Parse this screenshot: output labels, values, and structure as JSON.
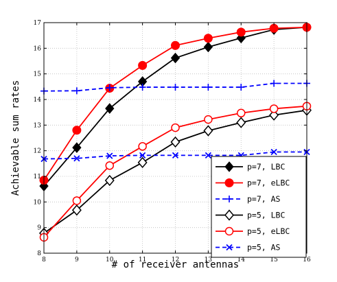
{
  "chart_data": {
    "type": "line",
    "title": "",
    "xlabel": "# of receiver antennas",
    "ylabel": "Achievable sum rates",
    "xlim": [
      8,
      16
    ],
    "ylim": [
      8,
      17
    ],
    "x_ticks": [
      "8",
      "9",
      "10",
      "11",
      "12",
      "13",
      "14",
      "15",
      "16"
    ],
    "y_ticks": [
      "8",
      "9",
      "10",
      "11",
      "12",
      "13",
      "14",
      "15",
      "16",
      "17"
    ],
    "grid": true,
    "legend_position": "bottom-right",
    "x": [
      8,
      9,
      10,
      11,
      12,
      13,
      14,
      15,
      16
    ],
    "series": [
      {
        "name": "p=7, LBC",
        "color": "#000000",
        "line": "solid",
        "marker": "filled-diamond",
        "values": [
          10.62,
          12.12,
          13.65,
          14.7,
          15.62,
          16.05,
          16.4,
          16.73,
          16.82
        ]
      },
      {
        "name": "p=7, eLBC",
        "color": "#ff0000",
        "line": "solid",
        "marker": "filled-circle",
        "values": [
          10.85,
          12.8,
          14.44,
          15.33,
          16.11,
          16.39,
          16.63,
          16.78,
          16.82
        ]
      },
      {
        "name": "p=7, AS",
        "color": "#0000ff",
        "line": "dashed",
        "marker": "plus",
        "values": [
          14.33,
          14.34,
          14.46,
          14.48,
          14.48,
          14.48,
          14.48,
          14.63,
          14.63
        ]
      },
      {
        "name": "p=5, LBC",
        "color": "#000000",
        "line": "solid",
        "marker": "open-diamond",
        "values": [
          8.78,
          9.68,
          10.84,
          11.54,
          12.34,
          12.78,
          13.1,
          13.39,
          13.58
        ]
      },
      {
        "name": "p=5, eLBC",
        "color": "#ff0000",
        "line": "solid",
        "marker": "open-circle",
        "values": [
          8.62,
          10.05,
          11.42,
          12.17,
          12.9,
          13.22,
          13.47,
          13.64,
          13.74
        ]
      },
      {
        "name": "p=5, AS",
        "color": "#0000ff",
        "line": "dashed",
        "marker": "x",
        "values": [
          11.68,
          11.7,
          11.8,
          11.82,
          11.82,
          11.82,
          11.82,
          11.95,
          11.95
        ]
      }
    ]
  }
}
